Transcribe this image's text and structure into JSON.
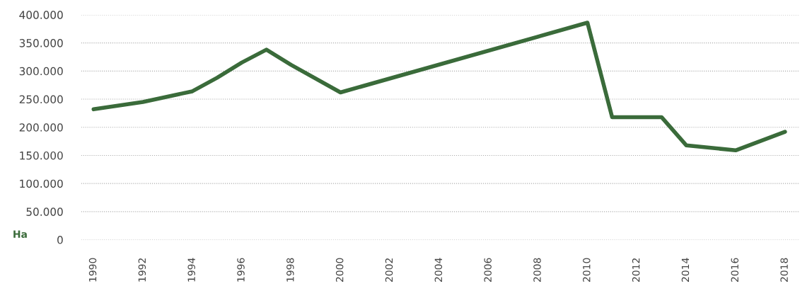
{
  "chart_data": {
    "type": "line",
    "ylabel": "Ha",
    "x": [
      1990,
      1992,
      1994,
      1995,
      1996,
      1997,
      1998,
      2000,
      2010,
      2011,
      2013,
      2014,
      2016,
      2018
    ],
    "series": [
      {
        "color": "#3a6b3a",
        "values": [
          232000,
          245000,
          264000,
          288000,
          315000,
          338000,
          311000,
          262000,
          386000,
          218000,
          218000,
          168000,
          159000,
          192000
        ]
      }
    ],
    "xlim": [
      1989.5,
      2018.6
    ],
    "xticks": [
      1990,
      1992,
      1994,
      1996,
      1998,
      2000,
      2002,
      2004,
      2006,
      2008,
      2010,
      2012,
      2014,
      2016,
      2018
    ],
    "ylim": [
      0,
      400000
    ],
    "yticks": [
      {
        "value": 0,
        "label": "0"
      },
      {
        "value": 50000,
        "label": "50.000"
      },
      {
        "value": 100000,
        "label": "100.000"
      },
      {
        "value": 150000,
        "label": "150.000"
      },
      {
        "value": 200000,
        "label": "200.000"
      },
      {
        "value": 250000,
        "label": "250.000"
      },
      {
        "value": 300000,
        "label": "300.000"
      },
      {
        "value": 350000,
        "label": "350.000"
      },
      {
        "value": 400000,
        "label": "400.000"
      }
    ],
    "grid": "y",
    "marker": "none",
    "line_style": "solid"
  }
}
